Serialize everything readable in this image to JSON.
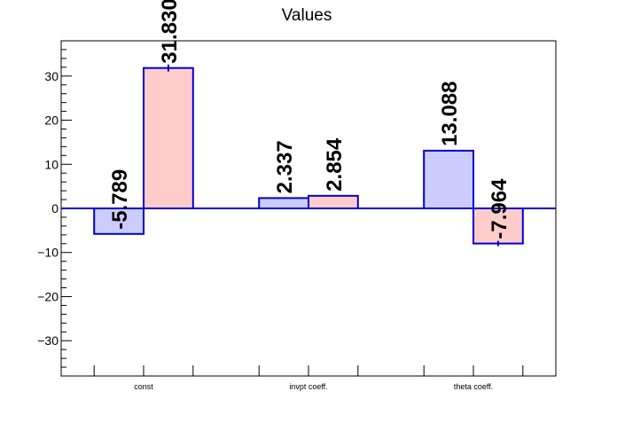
{
  "chart_data": {
    "type": "bar",
    "title": "Values",
    "xlabel": "",
    "ylabel": "",
    "ylim": [
      -38,
      38
    ],
    "yticks": [
      -30,
      -20,
      -10,
      0,
      10,
      20,
      30
    ],
    "ytick_labels": [
      "−30",
      "−20",
      "−10",
      "0",
      "10",
      "20",
      "30"
    ],
    "categories": [
      "const",
      "invpt coeff.",
      "theta coeff."
    ],
    "series": [
      {
        "values": [
          -5.789,
          2.337,
          13.088
        ],
        "labels": [
          "-5.789",
          "2.337",
          "13.088"
        ],
        "errors": [
          0,
          0,
          0
        ],
        "fill": "#ccccff",
        "stroke": "#0000cc"
      },
      {
        "values": [
          31.83,
          2.854,
          -7.964
        ],
        "labels": [
          "31.830",
          "2.854",
          "-7.964"
        ],
        "errors": [
          0.8,
          0,
          0.6
        ],
        "fill": "#ffcccc",
        "stroke": "#0000cc"
      }
    ],
    "zero_line_color": "#0000cc",
    "grid": false,
    "legend": "none"
  }
}
